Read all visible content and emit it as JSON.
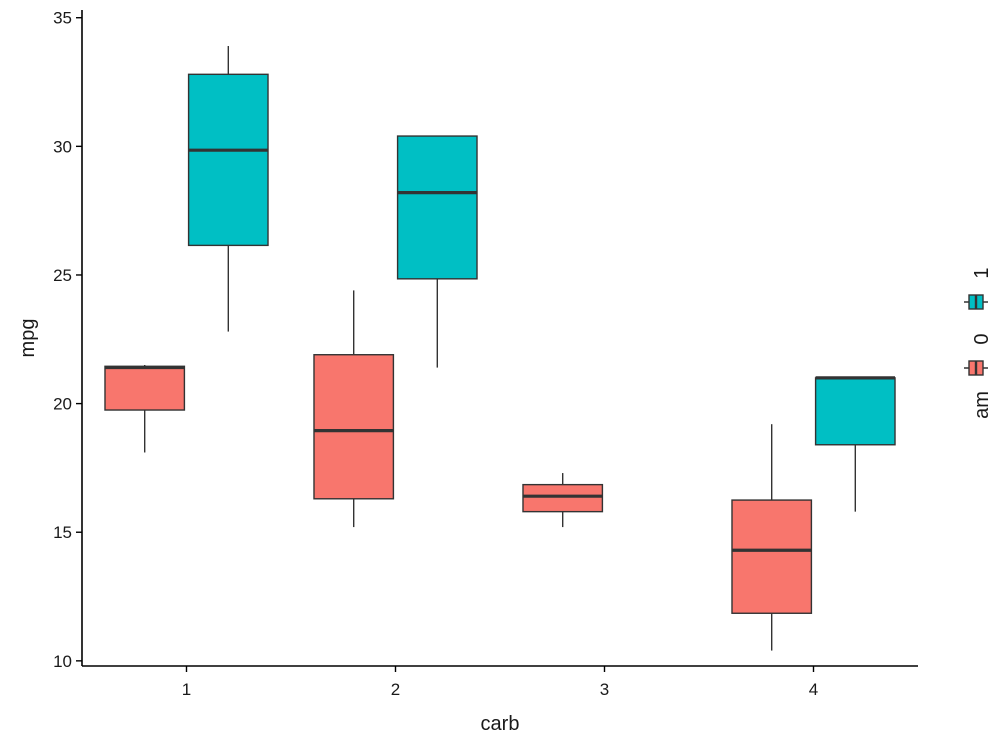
{
  "chart_data": {
    "type": "boxplot",
    "xlabel": "carb",
    "ylabel": "mpg",
    "categories": [
      "1",
      "2",
      "3",
      "4"
    ],
    "ylim": [
      9.8,
      35.3
    ],
    "yticks": [
      10,
      15,
      20,
      25,
      30,
      35
    ],
    "grid": false,
    "legend": {
      "title": "am",
      "position": "right",
      "entries": [
        {
          "label": "0",
          "color": "#F8766D"
        },
        {
          "label": "1",
          "color": "#00BFC4"
        }
      ]
    },
    "series": [
      {
        "group": "0",
        "color": "#F8766D",
        "boxes": [
          {
            "category": "1",
            "min": 18.1,
            "q1": 19.75,
            "median": 21.4,
            "q3": 21.45,
            "max": 21.5
          },
          {
            "category": "2",
            "min": 15.2,
            "q1": 16.3,
            "median": 18.95,
            "q3": 21.9,
            "max": 24.4
          },
          {
            "category": "3",
            "min": 15.2,
            "q1": 15.8,
            "median": 16.4,
            "q3": 16.85,
            "max": 17.3
          },
          {
            "category": "4",
            "min": 10.4,
            "q1": 11.85,
            "median": 14.3,
            "q3": 16.25,
            "max": 19.2
          }
        ]
      },
      {
        "group": "1",
        "color": "#00BFC4",
        "boxes": [
          {
            "category": "1",
            "min": 22.8,
            "q1": 26.15,
            "median": 29.85,
            "q3": 32.8,
            "max": 33.9
          },
          {
            "category": "2",
            "min": 21.4,
            "q1": 24.85,
            "median": 28.2,
            "q3": 30.4,
            "max": 30.4
          },
          {
            "category": "4",
            "min": 15.8,
            "q1": 18.4,
            "median": 21.0,
            "q3": 21.0,
            "max": 21.0
          }
        ]
      }
    ]
  }
}
